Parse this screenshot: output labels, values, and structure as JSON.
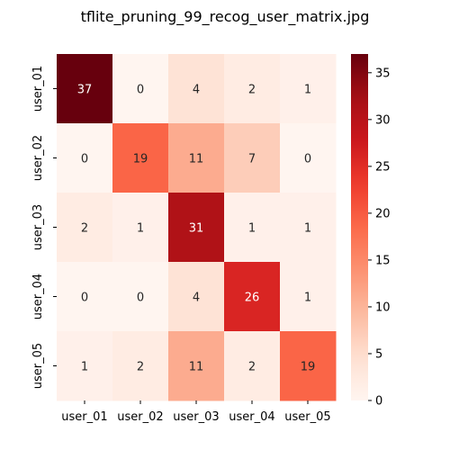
{
  "chart_data": {
    "type": "heatmap",
    "title": "tflite_pruning_99_recog_user_matrix.jpg",
    "row_labels": [
      "user_01",
      "user_02",
      "user_03",
      "user_04",
      "user_05"
    ],
    "col_labels": [
      "user_01",
      "user_02",
      "user_03",
      "user_04",
      "user_05"
    ],
    "values": [
      [
        37,
        0,
        4,
        2,
        1
      ],
      [
        0,
        19,
        11,
        7,
        0
      ],
      [
        2,
        1,
        31,
        1,
        1
      ],
      [
        0,
        0,
        4,
        26,
        1
      ],
      [
        1,
        2,
        11,
        2,
        19
      ]
    ],
    "colorbar": {
      "min": 0,
      "max": 37,
      "ticks": [
        0,
        5,
        10,
        15,
        20,
        25,
        30,
        35
      ],
      "colormap": "Reds"
    }
  }
}
